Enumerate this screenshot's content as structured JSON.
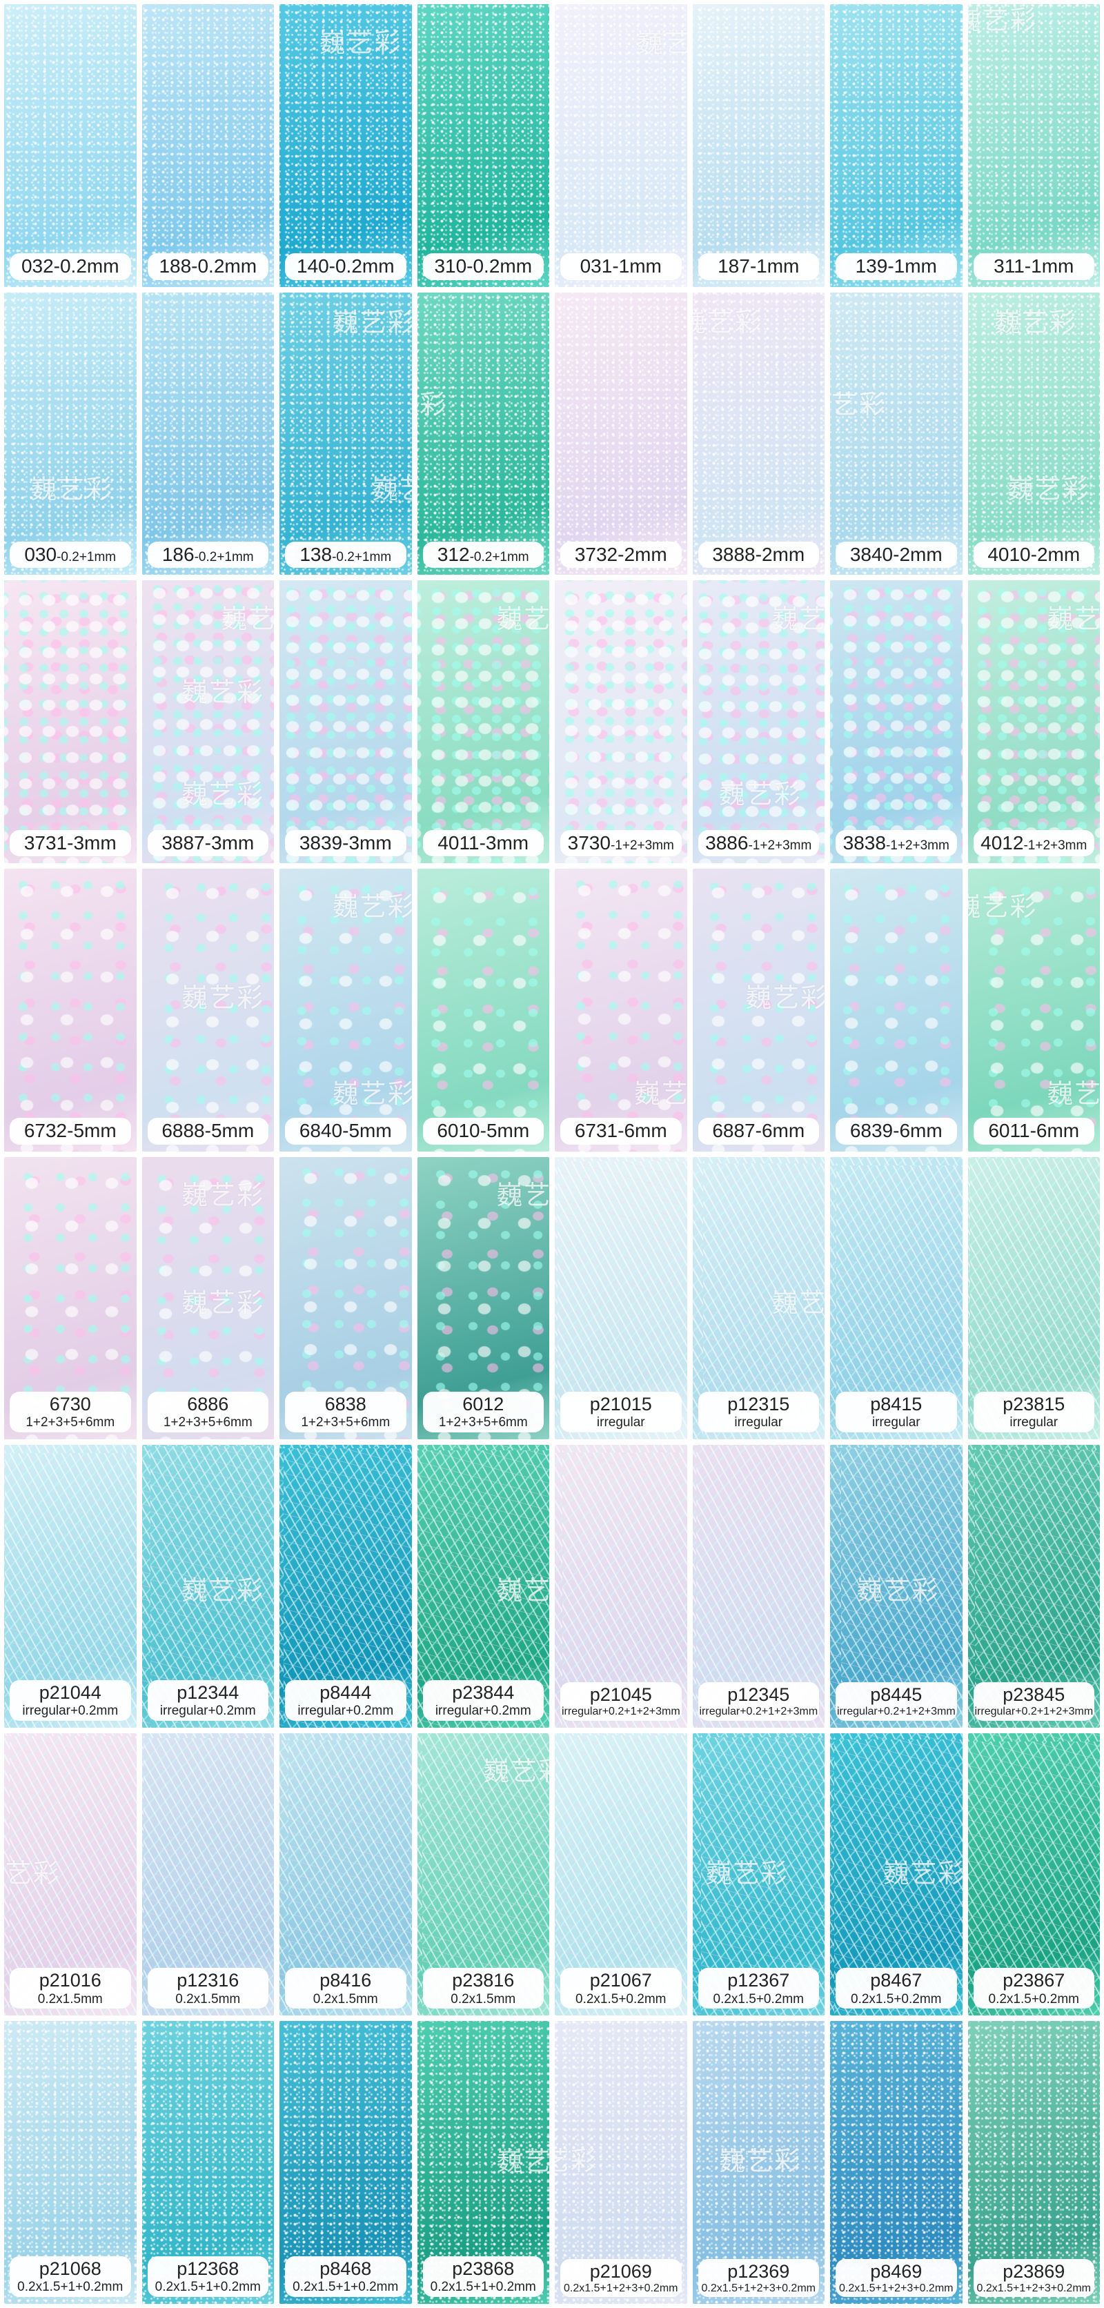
{
  "watermark": "巍艺彩",
  "rows": [
    {
      "texture": "fine",
      "tiles": [
        {
          "code": "032",
          "size": "-0.2mm",
          "c1": "#cdeef8",
          "c2": "#8fd7ef"
        },
        {
          "code": "188",
          "size": "-0.2mm",
          "c1": "#bfe6f6",
          "c2": "#7fc9ec"
        },
        {
          "code": "140",
          "size": "-0.2mm",
          "c1": "#56c9e4",
          "c2": "#1fa9cf"
        },
        {
          "code": "310",
          "size": "-0.2mm",
          "c1": "#5fd6c3",
          "c2": "#22b59e"
        },
        {
          "code": "031",
          "size": "-1mm",
          "c1": "#f2f0fb",
          "c2": "#d7e8f6"
        },
        {
          "code": "187",
          "size": "-1mm",
          "c1": "#e6f2f9",
          "c2": "#b7ddef"
        },
        {
          "code": "139",
          "size": "-1mm",
          "c1": "#9fe3ef",
          "c2": "#55c6e0"
        },
        {
          "code": "311",
          "size": "-1mm",
          "c1": "#bdeee6",
          "c2": "#7ad8c6"
        }
      ]
    },
    {
      "texture": "fine",
      "tiles": [
        {
          "code": "030",
          "size": "-0.2+1mm",
          "small": true,
          "c1": "#c7ecf7",
          "c2": "#8fd2ea"
        },
        {
          "code": "186",
          "size": "-0.2+1mm",
          "small": true,
          "c1": "#b8e4f4",
          "c2": "#7fc6e8"
        },
        {
          "code": "138",
          "size": "-0.2+1mm",
          "small": true,
          "c1": "#6fd0e4",
          "c2": "#35b3d2"
        },
        {
          "code": "312",
          "size": "-0.2+1mm",
          "small": true,
          "c1": "#6fd8c2",
          "c2": "#2db79b"
        },
        {
          "code": "3732",
          "size": "-2mm",
          "c1": "#f6e9f4",
          "c2": "#e0d6ef"
        },
        {
          "code": "3888",
          "size": "-2mm",
          "c1": "#f0e6f5",
          "c2": "#cfe4f3"
        },
        {
          "code": "3840",
          "size": "-2mm",
          "c1": "#cfe9f3",
          "c2": "#a9d9ec"
        },
        {
          "code": "4010",
          "size": "-2mm",
          "c1": "#bdeee0",
          "c2": "#88dcc6"
        }
      ]
    },
    {
      "texture": "flake",
      "tiles": [
        {
          "code": "3731",
          "size": "-3mm",
          "c1": "#f6e6f2",
          "c2": "#e6cfe8"
        },
        {
          "code": "3887",
          "size": "-3mm",
          "c1": "#efe1f0",
          "c2": "#cfe0f2"
        },
        {
          "code": "3839",
          "size": "-3mm",
          "c1": "#d6e8f3",
          "c2": "#b3d8ec"
        },
        {
          "code": "4011",
          "size": "-3mm",
          "c1": "#bfeedd",
          "c2": "#8adcc1"
        },
        {
          "code": "3730",
          "size": "-1+2+3mm",
          "small": true,
          "c1": "#f3eef7",
          "c2": "#dde8f4"
        },
        {
          "code": "3886",
          "size": "-1+2+3mm",
          "small": true,
          "c1": "#e9eaf6",
          "c2": "#c9def2"
        },
        {
          "code": "3838",
          "size": "-1+2+3mm",
          "small": true,
          "c1": "#cfe6f2",
          "c2": "#9fd2ea"
        },
        {
          "code": "4012",
          "size": "-1+2+3mm",
          "small": true,
          "c1": "#c4eee0",
          "c2": "#90dcc4"
        }
      ]
    },
    {
      "texture": "flake big",
      "tiles": [
        {
          "code": "6732",
          "size": "-5mm",
          "c1": "#f4e3f1",
          "c2": "#e3cde8"
        },
        {
          "code": "6888",
          "size": "-5mm",
          "c1": "#ecdff0",
          "c2": "#cfe0f0"
        },
        {
          "code": "6840",
          "size": "-5mm",
          "c1": "#d2e7f1",
          "c2": "#aed6ea"
        },
        {
          "code": "6010",
          "size": "-5mm",
          "c1": "#baeddb",
          "c2": "#84d9bf"
        },
        {
          "code": "6731",
          "size": "-6mm",
          "c1": "#f3e6f3",
          "c2": "#e2d2ea"
        },
        {
          "code": "6887",
          "size": "-6mm",
          "c1": "#e9e2f2",
          "c2": "#cbe0f1"
        },
        {
          "code": "6839",
          "size": "-6mm",
          "c1": "#d0e8f1",
          "c2": "#a6d5e9"
        },
        {
          "code": "6011",
          "size": "-6mm",
          "c1": "#b5ecd8",
          "c2": "#7dd7bb"
        }
      ]
    },
    {
      "texture": "flake big",
      "tiles": [
        {
          "code": "6730",
          "size": "1+2+3+5+6mm",
          "two": true,
          "c1": "#f2e3f0",
          "c2": "#e2cde6"
        },
        {
          "code": "6886",
          "size": "1+2+3+5+6mm",
          "two": true,
          "c1": "#ecdced",
          "c2": "#d3dcef"
        },
        {
          "code": "6838",
          "size": "1+2+3+5+6mm",
          "two": true,
          "c1": "#cde2ee",
          "c2": "#a8cfe4"
        },
        {
          "code": "6012",
          "size": "1+2+3+5+6mm",
          "two": true,
          "c1": "#8fd3c4",
          "c2": "#3f9f94"
        },
        {
          "code": "p21015",
          "size": "irregular",
          "two": true,
          "strand": true,
          "c1": "#e9f3f8",
          "c2": "#c8e6f0"
        },
        {
          "code": "p12315",
          "size": "irregular",
          "two": true,
          "strand": true,
          "c1": "#d8eff6",
          "c2": "#b0dcec"
        },
        {
          "code": "p8415",
          "size": "irregular",
          "two": true,
          "strand": true,
          "c1": "#c6eaf3",
          "c2": "#8fd0e6"
        },
        {
          "code": "p23815",
          "size": "irregular",
          "two": true,
          "strand": true,
          "c1": "#c9efe6",
          "c2": "#92dacb"
        }
      ]
    },
    {
      "texture": "strand",
      "tiles": [
        {
          "code": "p21044",
          "size": "irregular+0.2mm",
          "two": true,
          "c1": "#d3eff6",
          "c2": "#92d6e6"
        },
        {
          "code": "p12344",
          "size": "irregular+0.2mm",
          "two": true,
          "c1": "#8fdbe4",
          "c2": "#4cc0cf"
        },
        {
          "code": "p8444",
          "size": "irregular+0.2mm",
          "two": true,
          "c1": "#3cc0d6",
          "c2": "#1296b8"
        },
        {
          "code": "p23844",
          "size": "irregular+0.2mm",
          "two": true,
          "c1": "#57cfb2",
          "c2": "#1fa785"
        },
        {
          "code": "p21045",
          "size": "irregular+0.2+1+2+3mm",
          "two": true,
          "tiny": true,
          "c1": "#f1e6f2",
          "c2": "#ddd8ee"
        },
        {
          "code": "p12345",
          "size": "irregular+0.2+1+2+3mm",
          "two": true,
          "tiny": true,
          "c1": "#eadff0",
          "c2": "#d1dcf0"
        },
        {
          "code": "p8445",
          "size": "irregular+0.2+1+2+3mm",
          "two": true,
          "tiny": true,
          "c1": "#8fcfe2",
          "c2": "#4aa8cc"
        },
        {
          "code": "p23845",
          "size": "irregular+0.2+1+2+3mm",
          "two": true,
          "tiny": true,
          "c1": "#62c9b2",
          "c2": "#2aa38b"
        }
      ]
    },
    {
      "texture": "strand",
      "tiles": [
        {
          "code": "p21016",
          "size": "0.2x1.5mm",
          "two": true,
          "c1": "#f4e6f2",
          "c2": "#e4d2ea"
        },
        {
          "code": "p12316",
          "size": "0.2x1.5mm",
          "two": true,
          "c1": "#d8e4f2",
          "c2": "#b2d0ea"
        },
        {
          "code": "p8416",
          "size": "0.2x1.5mm",
          "two": true,
          "c1": "#bfe3ef",
          "c2": "#8cc8e2"
        },
        {
          "code": "p23816",
          "size": "0.2x1.5mm",
          "two": true,
          "c1": "#a4e6d6",
          "c2": "#63cfb5"
        },
        {
          "code": "p21067",
          "size": "0.2x1.5+0.2mm",
          "two": true,
          "c1": "#daf1f6",
          "c2": "#b2e1ec"
        },
        {
          "code": "p12367",
          "size": "0.2x1.5+0.2mm",
          "two": true,
          "c1": "#6fd3e0",
          "c2": "#33b8cc"
        },
        {
          "code": "p8467",
          "size": "0.2x1.5+0.2mm",
          "two": true,
          "c1": "#3cc2d6",
          "c2": "#1599ba"
        },
        {
          "code": "p23867",
          "size": "0.2x1.5+0.2mm",
          "two": true,
          "c1": "#4ecfae",
          "c2": "#1aa383"
        }
      ]
    },
    {
      "texture": "fine",
      "tiles": [
        {
          "code": "p21068",
          "size": "0.2x1.5+1+0.2mm",
          "two": true,
          "c1": "#cdeaf4",
          "c2": "#9bd3e8"
        },
        {
          "code": "p12368",
          "size": "0.2x1.5+1+0.2mm",
          "two": true,
          "c1": "#6fd2de",
          "c2": "#33b6c8"
        },
        {
          "code": "p8468",
          "size": "0.2x1.5+1+0.2mm",
          "two": true,
          "c1": "#46bfd6",
          "c2": "#1a93b6"
        },
        {
          "code": "p23868",
          "size": "0.2x1.5+1+0.2mm",
          "two": true,
          "c1": "#4fcdb0",
          "c2": "#1b9f84"
        },
        {
          "code": "p21069",
          "size": "0.2x1.5+1+2+3+0.2mm",
          "two": true,
          "tiny": true,
          "c1": "#e6e8f5",
          "c2": "#cfdcf0"
        },
        {
          "code": "p12369",
          "size": "0.2x1.5+1+2+3+0.2mm",
          "two": true,
          "tiny": true,
          "c1": "#b8d8ee",
          "c2": "#86bfe2"
        },
        {
          "code": "p8469",
          "size": "0.2x1.5+1+2+3+0.2mm",
          "two": true,
          "tiny": true,
          "c1": "#5ab4d8",
          "c2": "#2f8cc0"
        },
        {
          "code": "p23869",
          "size": "0.2x1.5+1+2+3+0.2mm",
          "two": true,
          "tiny": true,
          "c1": "#7fd0b8",
          "c2": "#3aa38e"
        }
      ]
    }
  ]
}
